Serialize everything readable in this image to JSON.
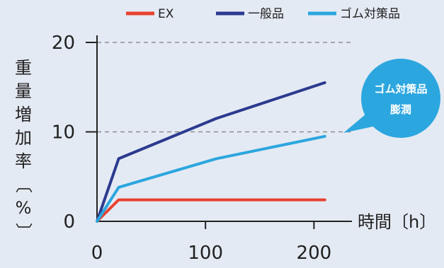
{
  "chart_data": {
    "type": "line",
    "title": "",
    "xlabel": "時間〔h〕",
    "ylabel": "重量増加率〔%〕",
    "xlim": [
      0,
      220
    ],
    "ylim": [
      0,
      20
    ],
    "x_ticks": [
      "0",
      "100",
      "200"
    ],
    "y_ticks": [
      "0",
      "10",
      "20"
    ],
    "grid": "horizontal dashed at 10 and 20",
    "legend": "top",
    "series": [
      {
        "name": "EX",
        "color": "#e8422f",
        "points": [
          [
            0,
            0
          ],
          [
            20,
            2.4
          ],
          [
            210,
            2.4
          ]
        ]
      },
      {
        "name": "一般品",
        "color": "#2b3a8f",
        "points": [
          [
            0,
            0
          ],
          [
            20,
            7.0
          ],
          [
            110,
            11.5
          ],
          [
            210,
            15.5
          ]
        ]
      },
      {
        "name": "ゴム対策品",
        "color": "#2ba6df",
        "points": [
          [
            0,
            0
          ],
          [
            20,
            3.8
          ],
          [
            110,
            7.0
          ],
          [
            210,
            9.5
          ]
        ]
      }
    ],
    "annotations": [
      {
        "text_line1": "ゴム対策品",
        "text_line2": "膨潤",
        "target_series": "ゴム対策品"
      }
    ]
  }
}
